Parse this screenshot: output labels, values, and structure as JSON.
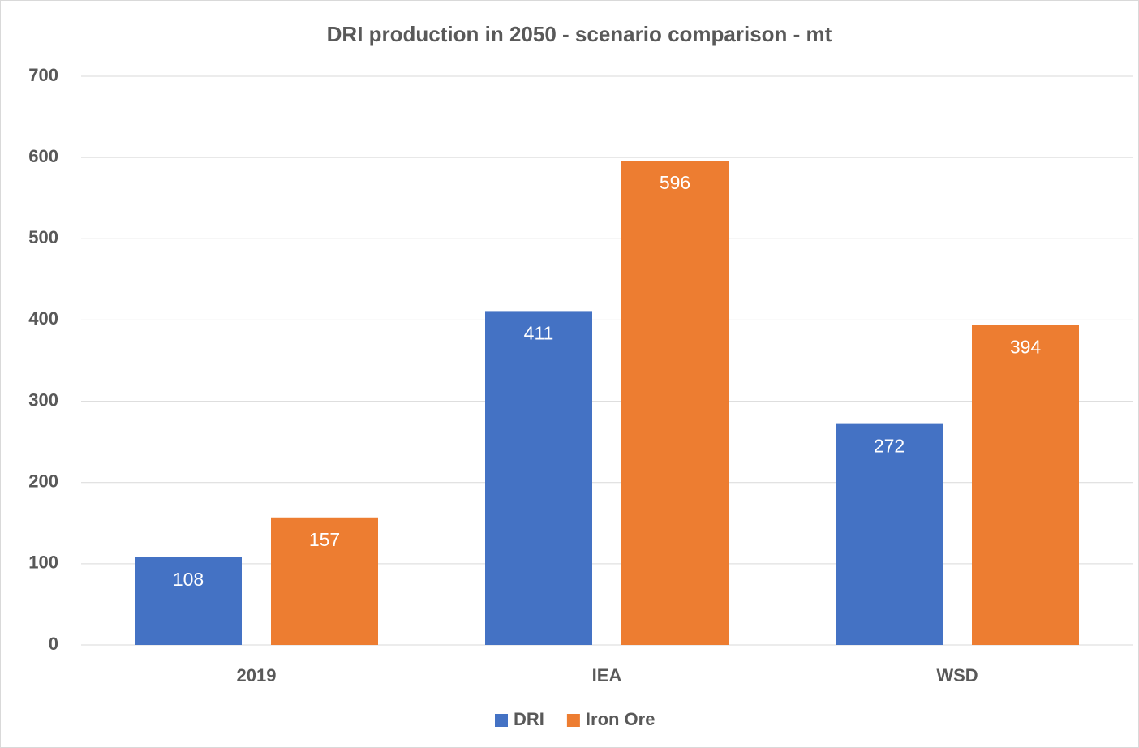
{
  "chart_data": {
    "type": "bar",
    "title": "DRI production in 2050 - scenario comparison - mt",
    "categories": [
      "2019",
      "IEA",
      "WSD"
    ],
    "series": [
      {
        "name": "DRI",
        "color": "#4472c4",
        "values": [
          108,
          411,
          272
        ]
      },
      {
        "name": "Iron Ore",
        "color": "#ed7d31",
        "values": [
          157,
          596,
          394
        ]
      }
    ],
    "ylim": [
      0,
      700
    ],
    "yticks": [
      0,
      100,
      200,
      300,
      400,
      500,
      600,
      700
    ],
    "grid": true,
    "legend": "bottom"
  }
}
